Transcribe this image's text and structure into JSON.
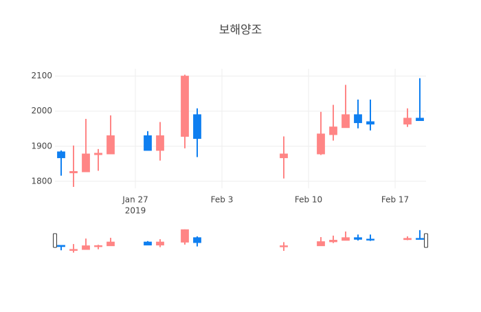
{
  "chart_data": {
    "type": "candlestick",
    "title": "보해양조",
    "x": [
      "2019-01-21",
      "2019-01-22",
      "2019-01-23",
      "2019-01-24",
      "2019-01-25",
      "2019-01-28",
      "2019-01-29",
      "2019-01-31",
      "2019-02-01",
      "2019-02-08",
      "2019-02-11",
      "2019-02-12",
      "2019-02-13",
      "2019-02-14",
      "2019-02-15",
      "2019-02-18",
      "2019-02-19"
    ],
    "open": [
      1884,
      1824,
      1827,
      1876,
      1878,
      1930,
      1888,
      1928,
      1990,
      1867,
      1878,
      1933,
      1953,
      1990,
      1970,
      1963,
      1980
    ],
    "high": [
      1888,
      1902,
      1978,
      1892,
      1988,
      1943,
      1969,
      2104,
      2008,
      1928,
      1998,
      2018,
      2075,
      2033,
      2033,
      2008,
      2094
    ],
    "low": [
      1816,
      1784,
      1827,
      1830,
      1878,
      1888,
      1859,
      1894,
      1869,
      1808,
      1875,
      1916,
      1953,
      1951,
      1945,
      1955,
      1973
    ],
    "close": [
      1867,
      1828,
      1878,
      1880,
      1930,
      1888,
      1930,
      2100,
      1922,
      1878,
      1935,
      1955,
      1990,
      1967,
      1963,
      1980,
      1973
    ],
    "increasing_color": "#ff8585",
    "decreasing_color": "#0f7ff0",
    "xlim": [
      "2019-01-21",
      "2019-02-19"
    ],
    "xticks": [
      {
        "value": "2019-01-27",
        "label": "Jan 27"
      },
      {
        "value": "2019-02-03",
        "label": "Feb 3"
      },
      {
        "value": "2019-02-10",
        "label": "Feb 10"
      },
      {
        "value": "2019-02-17",
        "label": "Feb 17"
      }
    ],
    "x_year_label": "2019",
    "ylim": [
      1780,
      2121
    ],
    "yticks": [
      1800,
      1900,
      2000,
      2100
    ],
    "grid": true,
    "range_slider": true
  }
}
